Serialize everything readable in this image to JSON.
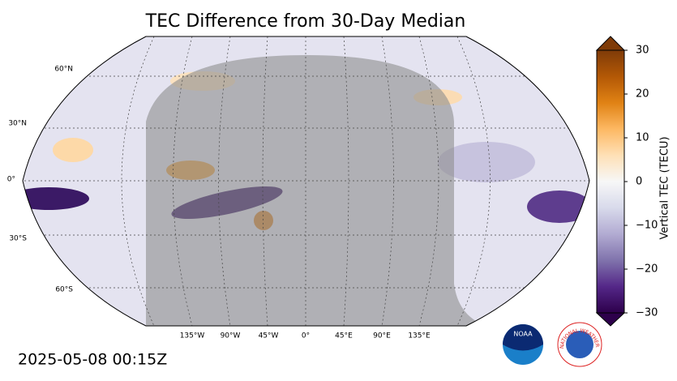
{
  "title": "TEC Difference from 30-Day Median",
  "map": {
    "lat_labels": [
      "60°N",
      "30°N",
      "0°",
      "30°S",
      "60°S"
    ],
    "lon_labels": [
      "135°W",
      "90°W",
      "45°W",
      "0°",
      "45°E",
      "90°E",
      "135°E"
    ]
  },
  "colorbar": {
    "label": "Vertical TEC (TECU)",
    "lim": [
      -30,
      30
    ],
    "ticks": [
      30,
      20,
      10,
      0,
      {
        "value": -10,
        "label": "−10"
      },
      {
        "value": -20,
        "label": "−20"
      },
      {
        "value": -30,
        "label": "−30"
      }
    ],
    "colors": [
      "#2d004b",
      "#542788",
      "#8073ac",
      "#b2abd2",
      "#d8daeb",
      "#f7f7f7",
      "#fee0b6",
      "#fdb863",
      "#e08214",
      "#b35806",
      "#7f3b08"
    ]
  },
  "timestamp": "2025-05-08 00:15Z",
  "logos": {
    "noaa": "NOAA",
    "nws": "NATIONAL WEATHER SERVICE"
  }
}
